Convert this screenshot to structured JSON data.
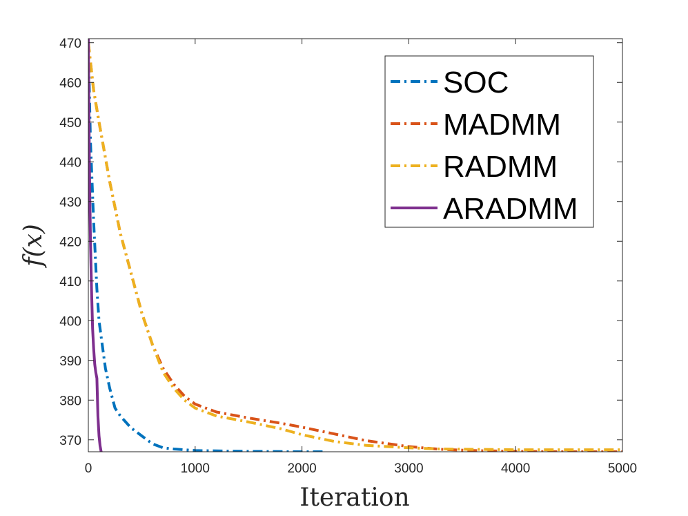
{
  "chart_data": {
    "type": "line",
    "title": "",
    "xlabel": "Iteration",
    "ylabel": "f(x)",
    "xlim": [
      0,
      5000
    ],
    "ylim": [
      367,
      471
    ],
    "xticks": [
      0,
      1000,
      2000,
      3000,
      4000,
      5000
    ],
    "yticks": [
      370,
      380,
      390,
      400,
      410,
      420,
      430,
      440,
      450,
      460,
      470
    ],
    "xtick_labels": [
      "0",
      "1000",
      "2000",
      "3000",
      "4000",
      "5000"
    ],
    "ytick_labels": [
      "370",
      "380",
      "390",
      "400",
      "410",
      "420",
      "430",
      "440",
      "450",
      "460",
      "470"
    ],
    "legend_position": "top-right",
    "series": [
      {
        "name": "SOC",
        "color": "#0072BD",
        "dash": "dashdot",
        "x": [
          0,
          20,
          50,
          80,
          100,
          130,
          160,
          200,
          250,
          300,
          400,
          500,
          600,
          700,
          800,
          1000,
          1500,
          2000,
          2200
        ],
        "y": [
          470,
          445,
          425,
          408,
          400,
          394,
          388,
          383,
          378,
          376,
          373,
          371,
          369,
          368,
          367.7,
          367.3,
          367.1,
          367.0,
          367.0
        ]
      },
      {
        "name": "MADMM",
        "color": "#D95319",
        "dash": "dashdot",
        "x": [
          0,
          50,
          100,
          200,
          300,
          400,
          500,
          600,
          700,
          800,
          900,
          1000,
          1200,
          1500,
          1800,
          2000,
          2300,
          2600,
          3000,
          3300,
          3600,
          4000,
          4500,
          5000
        ],
        "y": [
          470,
          458,
          450,
          435,
          422,
          412,
          402,
          394,
          388,
          384,
          381,
          379,
          377,
          375.5,
          374.2,
          373.2,
          371.5,
          369.8,
          368.3,
          367.6,
          367.3,
          367.1,
          367.0,
          367.0
        ]
      },
      {
        "name": "RADMM",
        "color": "#EDB120",
        "dash": "dashdot",
        "x": [
          0,
          50,
          100,
          200,
          300,
          400,
          500,
          600,
          700,
          800,
          900,
          1000,
          1200,
          1500,
          1800,
          2000,
          2300,
          2600,
          3000,
          3300,
          3600,
          4000,
          4500,
          5000
        ],
        "y": [
          470,
          458,
          450,
          435,
          422,
          412,
          402,
          394,
          387,
          383,
          380,
          378,
          376,
          374.5,
          372.8,
          371.3,
          369.6,
          368.6,
          368.0,
          367.7,
          367.6,
          367.5,
          367.5,
          367.5
        ]
      },
      {
        "name": "ARADMM",
        "color": "#7E2F8E",
        "dash": "solid",
        "x": [
          0,
          10,
          20,
          30,
          40,
          50,
          60,
          70,
          80,
          90,
          100,
          110,
          120
        ],
        "y": [
          471,
          440,
          420,
          408,
          398,
          393,
          389,
          387,
          385.5,
          376,
          371,
          368.5,
          367
        ]
      }
    ]
  }
}
